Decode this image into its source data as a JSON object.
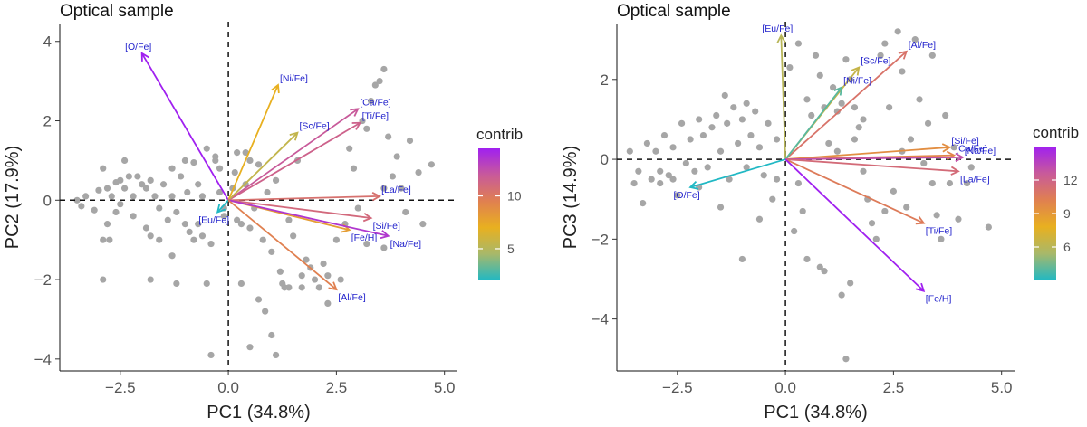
{
  "chart_data": [
    {
      "type": "scatter",
      "title": "Optical sample",
      "xlabel": "PC1 (34.8%)",
      "ylabel": "PC2 (17.9%)",
      "xlim": [
        -3.9,
        5.3
      ],
      "ylim": [
        -4.3,
        4.45
      ],
      "xticks": [
        -2.5,
        0.0,
        2.5,
        5.0
      ],
      "xtick_labels": [
        "−2.5",
        "0.0",
        "2.5",
        "5.0"
      ],
      "yticks": [
        -4,
        -2,
        0,
        2,
        4
      ],
      "ytick_labels": [
        "−4",
        "−2",
        "0",
        "2",
        "4"
      ],
      "legend": {
        "title": "contrib",
        "range": [
          2,
          14.5
        ],
        "ticks": [
          5,
          10
        ],
        "tick_labels": [
          "5",
          "10"
        ],
        "placement": "right"
      },
      "color_scale": [
        "#20b8c4",
        "#a8b86a",
        "#e8b020",
        "#e08050",
        "#c85a9a",
        "#a020f0"
      ],
      "vectors": [
        {
          "label": "[O/Fe]",
          "x": -2.0,
          "y": 3.7,
          "contrib": 14.5
        },
        {
          "label": "[Ni/Fe]",
          "x": 1.15,
          "y": 2.9,
          "contrib": 7.0
        },
        {
          "label": "[Ca/Fe]",
          "x": 3.0,
          "y": 2.3,
          "contrib": 12.0
        },
        {
          "label": "[Ti/Fe]",
          "x": 3.05,
          "y": 1.95,
          "contrib": 11.5
        },
        {
          "label": "[Sc/Fe]",
          "x": 1.6,
          "y": 1.7,
          "contrib": 5.5
        },
        {
          "label": "[La/Fe]",
          "x": 3.5,
          "y": 0.1,
          "contrib": 10.5
        },
        {
          "label": "[Eu/Fe]",
          "x": -0.25,
          "y": -0.3,
          "contrib": 2.0
        },
        {
          "label": "[Si/Fe]",
          "x": 3.3,
          "y": -0.45,
          "contrib": 11.0
        },
        {
          "label": "[Fe/H]",
          "x": 2.8,
          "y": -0.75,
          "contrib": 8.0
        },
        {
          "label": "[Na/Fe]",
          "x": 3.7,
          "y": -0.9,
          "contrib": 13.5
        },
        {
          "label": "[Al/Fe]",
          "x": 2.5,
          "y": -2.25,
          "contrib": 9.5
        }
      ],
      "points": [
        [
          -3.5,
          0
        ],
        [
          -3.4,
          -0.15
        ],
        [
          -3.3,
          0.1
        ],
        [
          -3.1,
          -0.25
        ],
        [
          -3.0,
          0.25
        ],
        [
          -2.9,
          -1.0
        ],
        [
          -2.8,
          -0.6
        ],
        [
          -2.8,
          0.3
        ],
        [
          -2.75,
          -1.0
        ],
        [
          -2.7,
          0.1
        ],
        [
          -2.6,
          -0.3
        ],
        [
          -2.6,
          0.45
        ],
        [
          -2.5,
          -0.1
        ],
        [
          -2.5,
          0.5
        ],
        [
          -2.4,
          0.3
        ],
        [
          -2.3,
          0.6
        ],
        [
          -2.2,
          0.1
        ],
        [
          -2.2,
          -0.4
        ],
        [
          -2.1,
          0.6
        ],
        [
          -2.0,
          0.4
        ],
        [
          -1.9,
          0.3
        ],
        [
          -1.9,
          -0.7
        ],
        [
          -1.8,
          0.5
        ],
        [
          -1.8,
          -0.9
        ],
        [
          -1.7,
          0.1
        ],
        [
          -1.6,
          -0.2
        ],
        [
          -1.5,
          0.4
        ],
        [
          -1.4,
          -0.5
        ],
        [
          -1.3,
          0.1
        ],
        [
          -1.2,
          -0.3
        ],
        [
          -1.1,
          0.6
        ],
        [
          -1.0,
          -0.6
        ],
        [
          -0.95,
          0.2
        ],
        [
          -0.9,
          -0.8
        ],
        [
          -0.8,
          -1.0
        ],
        [
          -0.7,
          0.4
        ],
        [
          -0.7,
          -0.6
        ],
        [
          -0.6,
          0.1
        ],
        [
          -0.5,
          1.3
        ],
        [
          -0.4,
          -1.1
        ],
        [
          -0.3,
          1.0
        ],
        [
          -0.2,
          0.8
        ],
        [
          -0.1,
          -0.2
        ],
        [
          0.1,
          0.3
        ],
        [
          0.2,
          -0.5
        ],
        [
          0.3,
          -0.6
        ],
        [
          0.4,
          1.2
        ],
        [
          0.5,
          -0.7
        ],
        [
          0.6,
          -0.2
        ],
        [
          0.7,
          0.9
        ],
        [
          0.8,
          -1.0
        ],
        [
          0.85,
          -2.8
        ],
        [
          0.9,
          0.2
        ],
        [
          1.0,
          -1.3
        ],
        [
          1.1,
          0.5
        ],
        [
          1.2,
          -1.8
        ],
        [
          1.25,
          -2.1
        ],
        [
          1.3,
          -2.2
        ],
        [
          1.4,
          -2.2
        ],
        [
          1.5,
          -0.9
        ],
        [
          1.6,
          1.0
        ],
        [
          1.7,
          -1.9
        ],
        [
          1.8,
          -1.5
        ],
        [
          1.9,
          -1.7
        ],
        [
          2.0,
          -2.0
        ],
        [
          2.1,
          -2.2
        ],
        [
          2.2,
          -1.6
        ],
        [
          2.3,
          -1.9
        ],
        [
          2.5,
          -1.0
        ],
        [
          2.7,
          -0.6
        ],
        [
          2.8,
          1.3
        ],
        [
          2.9,
          0.8
        ],
        [
          3.0,
          -0.2
        ],
        [
          3.1,
          2.0
        ],
        [
          3.2,
          1.8
        ],
        [
          3.3,
          2.5
        ],
        [
          3.4,
          2.9
        ],
        [
          3.5,
          3.0
        ],
        [
          3.6,
          3.3
        ],
        [
          3.7,
          1.6
        ],
        [
          3.8,
          0.6
        ],
        [
          3.9,
          1.1
        ],
        [
          4.0,
          0.3
        ],
        [
          4.1,
          -0.3
        ],
        [
          4.2,
          1.5
        ],
        [
          4.4,
          0.7
        ],
        [
          4.5,
          -0.6
        ],
        [
          4.7,
          0.9
        ],
        [
          3.2,
          -1.1
        ],
        [
          3.6,
          -1.2
        ],
        [
          -1.6,
          -1.0
        ],
        [
          -1.3,
          -1.4
        ],
        [
          -1.8,
          -2.0
        ],
        [
          -2.9,
          -2.0
        ],
        [
          -1.2,
          -2.1
        ],
        [
          -0.5,
          -2.1
        ],
        [
          -0.4,
          -3.9
        ],
        [
          0.3,
          -2.1
        ],
        [
          0.7,
          -2.5
        ],
        [
          1.0,
          -3.4
        ],
        [
          1.1,
          -3.9
        ],
        [
          0.5,
          -3.7
        ],
        [
          -0.1,
          -0.4
        ],
        [
          -0.2,
          0.2
        ],
        [
          -0.3,
          1.1
        ],
        [
          0.2,
          1.2
        ],
        [
          0.15,
          0.7
        ],
        [
          0.5,
          1.0
        ],
        [
          -1.0,
          1.0
        ],
        [
          -1.3,
          0.8
        ],
        [
          -2.9,
          0.8
        ],
        [
          -2.4,
          1.0
        ],
        [
          -0.8,
          0.95
        ],
        [
          1.4,
          -0.5
        ],
        [
          1.7,
          -2.2
        ],
        [
          2.6,
          -2.0
        ],
        [
          0.4,
          0.4
        ],
        [
          -0.6,
          -0.9
        ],
        [
          3.6,
          0.3
        ],
        [
          2.3,
          -2.6
        ]
      ]
    },
    {
      "type": "scatter",
      "title": "Optical sample",
      "xlabel": "PC1 (34.8%)",
      "ylabel": "PC3 (14.9%)",
      "xlim": [
        -3.9,
        5.3
      ],
      "ylim": [
        -5.3,
        3.4
      ],
      "xticks": [
        -2.5,
        0.0,
        2.5,
        5.0
      ],
      "xtick_labels": [
        "−2.5",
        "0.0",
        "2.5",
        "5.0"
      ],
      "yticks": [
        -4,
        -2,
        0,
        2
      ],
      "ytick_labels": [
        "−4",
        "−2",
        "0",
        "2"
      ],
      "legend": {
        "title": "contrib",
        "range": [
          3,
          15
        ],
        "ticks": [
          6,
          9,
          12
        ],
        "tick_labels": [
          "6",
          "9",
          "12"
        ],
        "placement": "right"
      },
      "color_scale": [
        "#20b8c4",
        "#a8b86a",
        "#e8b020",
        "#e08050",
        "#c85a9a",
        "#a020f0"
      ],
      "vectors": [
        {
          "label": "[Eu/Fe]",
          "x": -0.1,
          "y": 3.1,
          "contrib": 6.0
        },
        {
          "label": "[Al/Fe]",
          "x": 2.8,
          "y": 2.7,
          "contrib": 11.0
        },
        {
          "label": "[Sc/Fe]",
          "x": 1.7,
          "y": 2.3,
          "contrib": 6.5
        },
        {
          "label": "[Ni/Fe]",
          "x": 1.3,
          "y": 1.8,
          "contrib": 4.0
        },
        {
          "label": "[Si/Fe]",
          "x": 3.8,
          "y": 0.3,
          "contrib": 9.5
        },
        {
          "label": "[Ca/Fe]",
          "x": 3.9,
          "y": 0.1,
          "contrib": 10.0
        },
        {
          "label": "[Na/Fe]",
          "x": 4.1,
          "y": 0.05,
          "contrib": 13.0
        },
        {
          "label": "[La/Fe]",
          "x": 4.0,
          "y": -0.3,
          "contrib": 11.5
        },
        {
          "label": "[Ti/Fe]",
          "x": 3.2,
          "y": -1.6,
          "contrib": 10.5
        },
        {
          "label": "[Fe/H]",
          "x": 3.2,
          "y": -3.3,
          "contrib": 15.0
        },
        {
          "label": "[O/Fe]",
          "x": -2.2,
          "y": -0.7,
          "contrib": 3.0
        }
      ],
      "points": [
        [
          -3.6,
          0.2
        ],
        [
          -3.5,
          -0.6
        ],
        [
          -3.4,
          -0.3
        ],
        [
          -3.3,
          -1.1
        ],
        [
          -3.2,
          0.4
        ],
        [
          -3.1,
          -0.5
        ],
        [
          -3.0,
          0.2
        ],
        [
          -2.9,
          -0.6
        ],
        [
          -2.8,
          0.6
        ],
        [
          -2.7,
          -0.4
        ],
        [
          -2.6,
          0.3
        ],
        [
          -2.5,
          -0.9
        ],
        [
          -2.4,
          0.9
        ],
        [
          -2.3,
          -0.1
        ],
        [
          -2.2,
          0.5
        ],
        [
          -2.1,
          -0.3
        ],
        [
          -2.0,
          1.0
        ],
        [
          -1.9,
          0.6
        ],
        [
          -1.8,
          -0.2
        ],
        [
          -1.7,
          0.8
        ],
        [
          -1.6,
          1.1
        ],
        [
          -1.5,
          0.2
        ],
        [
          -1.4,
          1.6
        ],
        [
          -1.35,
          0.9
        ],
        [
          -1.3,
          -0.5
        ],
        [
          -1.2,
          1.3
        ],
        [
          -1.1,
          0.4
        ],
        [
          -1.0,
          1.0
        ],
        [
          -0.9,
          -0.2
        ],
        [
          -0.8,
          0.6
        ],
        [
          -0.7,
          1.2
        ],
        [
          -0.6,
          0.3
        ],
        [
          -0.5,
          -0.4
        ],
        [
          -0.4,
          0.9
        ],
        [
          -0.3,
          -1.0
        ],
        [
          -0.2,
          0.5
        ],
        [
          0.1,
          2.3
        ],
        [
          0.3,
          2.9
        ],
        [
          0.5,
          1.5
        ],
        [
          0.6,
          1.1
        ],
        [
          0.7,
          2.6
        ],
        [
          0.8,
          2.1
        ],
        [
          0.9,
          1.3
        ],
        [
          1.0,
          0.4
        ],
        [
          1.1,
          1.8
        ],
        [
          1.2,
          1.2
        ],
        [
          1.3,
          1.4
        ],
        [
          1.4,
          2.5
        ],
        [
          1.5,
          2.0
        ],
        [
          1.6,
          1.3
        ],
        [
          1.7,
          0.8
        ],
        [
          1.8,
          -0.3
        ],
        [
          1.9,
          -1.0
        ],
        [
          2.0,
          -1.6
        ],
        [
          2.1,
          -2.0
        ],
        [
          2.2,
          2.6
        ],
        [
          2.3,
          2.9
        ],
        [
          2.4,
          1.3
        ],
        [
          2.5,
          -0.8
        ],
        [
          2.6,
          3.2
        ],
        [
          2.7,
          2.2
        ],
        [
          2.8,
          -1.2
        ],
        [
          2.9,
          0.5
        ],
        [
          3.0,
          3.0
        ],
        [
          3.1,
          1.5
        ],
        [
          3.2,
          -0.1
        ],
        [
          3.3,
          0.9
        ],
        [
          3.4,
          -0.6
        ],
        [
          3.5,
          -1.4
        ],
        [
          3.6,
          -2.0
        ],
        [
          3.7,
          1.1
        ],
        [
          3.8,
          -0.6
        ],
        [
          3.9,
          0.3
        ],
        [
          4.0,
          -1.5
        ],
        [
          4.2,
          -0.6
        ],
        [
          4.3,
          -0.2
        ],
        [
          4.7,
          -1.7
        ],
        [
          1.4,
          -5.0
        ],
        [
          1.5,
          -3.1
        ],
        [
          0.9,
          -2.8
        ],
        [
          0.4,
          -1.3
        ],
        [
          0.5,
          -2.5
        ],
        [
          0.8,
          -2.7
        ],
        [
          -1.0,
          -2.5
        ],
        [
          -1.5,
          -1.2
        ],
        [
          -0.6,
          -1.5
        ],
        [
          0.3,
          -0.6
        ],
        [
          -0.2,
          -0.5
        ],
        [
          -2.6,
          -0.5
        ],
        [
          1.3,
          -3.4
        ],
        [
          -2.9,
          -0.3
        ],
        [
          -2.0,
          -0.7
        ],
        [
          1.6,
          0.5
        ],
        [
          2.7,
          0.2
        ],
        [
          3.4,
          2.6
        ],
        [
          1.2,
          0.2
        ],
        [
          -0.9,
          1.4
        ],
        [
          0.2,
          -1.8
        ],
        [
          1.8,
          1.0
        ],
        [
          2.3,
          -1.3
        ]
      ]
    }
  ]
}
